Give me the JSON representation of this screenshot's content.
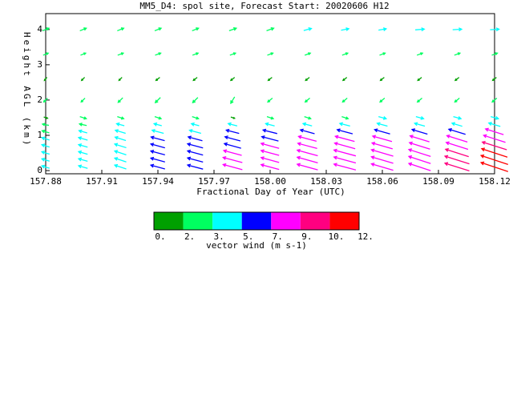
{
  "chart_data": {
    "type": "vector",
    "title": "MM5_D4: spol site,  Forecast Start: 20020606 H12",
    "x_label": "Fractional Day of Year (UTC)",
    "y_label": "Height AGL (km)",
    "xlim": [
      157.88,
      158.12
    ],
    "xticks": [
      157.88,
      157.91,
      157.94,
      157.97,
      {
        "value": 158.0,
        "label": "158.00"
      },
      158.03,
      158.06,
      158.09,
      158.12
    ],
    "ylim": [
      -0.09,
      4.45
    ],
    "yticks": [
      0,
      1,
      2,
      3,
      4
    ],
    "x": [
      157.88,
      157.9,
      157.92,
      157.94,
      157.96,
      157.98,
      158.0,
      158.02,
      158.04,
      158.06,
      158.08,
      158.1,
      158.12
    ],
    "levels": [
      0.1,
      0.3,
      0.5,
      0.7,
      0.9,
      1.1,
      1.3,
      1.5,
      2.0,
      2.6,
      3.3,
      4.0
    ],
    "u": [
      [
        -3,
        -3,
        -3,
        -3,
        -3,
        -2.8,
        -2.5,
        1.5,
        -1.5,
        -1,
        2,
        2.5
      ],
      [
        -3.5,
        -3.5,
        -3.5,
        -3.5,
        -3.5,
        -3.2,
        -2.8,
        2.5,
        -1.5,
        -1.2,
        2,
        2.5
      ],
      [
        -4.5,
        -4.5,
        -4.5,
        -4.5,
        -4.2,
        -4,
        -3,
        2.5,
        -1.8,
        -1.2,
        2.2,
        2.5
      ],
      [
        -5.5,
        -5.5,
        -5.5,
        -5.5,
        -5.3,
        -4.5,
        -3,
        2.5,
        -2,
        -1.5,
        2.2,
        2.5
      ],
      [
        -6,
        -6,
        -6,
        -6,
        -5.5,
        -4.5,
        -3,
        2.5,
        -2,
        -1.5,
        2.2,
        2.5
      ],
      [
        -7.5,
        -7.5,
        -7,
        -6.5,
        -6,
        -5,
        -3.5,
        1.5,
        -1.5,
        -1.5,
        2.2,
        2.8
      ],
      [
        -7,
        -7,
        -7,
        -7,
        -6.5,
        -5.5,
        -3.5,
        2.5,
        -1.8,
        -1.5,
        2.2,
        2.8
      ],
      [
        -8,
        -8,
        -8,
        -7.5,
        -7,
        -5.5,
        -3.5,
        2.5,
        -1.8,
        -1.5,
        2.2,
        3
      ],
      [
        -8.5,
        -8.5,
        -8.5,
        -8,
        -7.5,
        -6,
        -4,
        2.5,
        -1.8,
        -1.5,
        2.2,
        3
      ],
      [
        -8.5,
        -8.5,
        -8.5,
        -8,
        -7.5,
        -6,
        -4,
        3,
        -1.8,
        -1.5,
        2.2,
        3
      ],
      [
        -8.5,
        -8.5,
        -8.5,
        -8,
        -7.5,
        -6,
        -4,
        3,
        -1.8,
        -1.5,
        2.2,
        3.5
      ],
      [
        -9.5,
        -9.5,
        -9,
        -8.5,
        -8,
        -6.5,
        -4,
        3,
        -1.8,
        -1.5,
        2.2,
        3.5
      ],
      [
        -10.5,
        -10.5,
        -10,
        -9.5,
        -8.5,
        -7,
        -4.5,
        3,
        -1.8,
        -1.5,
        2.2,
        3.5
      ]
    ],
    "v": [
      [
        0.9,
        0.9,
        0.9,
        0.9,
        0.9,
        0.8,
        0.5,
        -0.5,
        -1.5,
        -1.2,
        0.8,
        1
      ],
      [
        1,
        1,
        1,
        1,
        1,
        0.9,
        0.6,
        -0.8,
        -1.5,
        -1.2,
        0.8,
        1
      ],
      [
        1.5,
        1.5,
        1.5,
        1.4,
        1.3,
        1.2,
        0.8,
        -0.8,
        -1.8,
        -1.2,
        0.8,
        1
      ],
      [
        1.5,
        1.5,
        1.5,
        1.5,
        1.4,
        1.2,
        0.8,
        -0.8,
        -2,
        -1.2,
        0.8,
        1
      ],
      [
        1.6,
        1.6,
        1.6,
        1.6,
        1.5,
        1.2,
        0.8,
        -0.8,
        -2,
        -1.2,
        0.8,
        1
      ],
      [
        2,
        2,
        1.9,
        1.8,
        1.6,
        1.3,
        0.9,
        -0.5,
        -2.5,
        -1.2,
        0.8,
        1
      ],
      [
        1.9,
        1.9,
        1.9,
        1.9,
        1.7,
        1.4,
        0.9,
        -0.8,
        -1.5,
        -1.2,
        0.8,
        1
      ],
      [
        2.2,
        2.2,
        2.2,
        2,
        1.9,
        1.5,
        0.9,
        -0.8,
        -1.5,
        -1.2,
        0.8,
        0.8
      ],
      [
        2.3,
        2.3,
        2.3,
        2.2,
        2,
        1.6,
        1,
        -0.8,
        -1.5,
        -1.2,
        0.8,
        0.6
      ],
      [
        2.5,
        2.5,
        2.5,
        2.3,
        2.1,
        1.7,
        1.1,
        -0.8,
        -1.5,
        -1.2,
        0.8,
        0.5
      ],
      [
        2.8,
        2.8,
        2.7,
        2.5,
        2.3,
        1.8,
        1.1,
        -0.8,
        -1.5,
        -1.2,
        0.8,
        0.3
      ],
      [
        3,
        3,
        2.9,
        2.7,
        2.5,
        2,
        1.2,
        -0.8,
        -1.5,
        -1.2,
        0.8,
        0.2
      ],
      [
        3.5,
        3.5,
        3.3,
        3,
        2.7,
        2.2,
        1.3,
        -0.8,
        -1.5,
        -1.2,
        0.8,
        0.2
      ]
    ],
    "colorbar_label": "vector wind (m s-1)",
    "colorbar_ticks": [
      {
        "value": 0,
        "label": "0."
      },
      {
        "value": 2,
        "label": "2."
      },
      {
        "value": 3,
        "label": "3."
      },
      {
        "value": 5,
        "label": "5."
      },
      {
        "value": 7,
        "label": "7."
      },
      {
        "value": 9,
        "label": "9."
      },
      {
        "value": 10,
        "label": "10."
      },
      {
        "value": 12,
        "label": "12."
      }
    ],
    "colors": [
      "#00a000",
      "#00ff60",
      "#00ffff",
      "#0000ff",
      "#ff00ff",
      "#ff0080",
      "#ff0000"
    ]
  }
}
